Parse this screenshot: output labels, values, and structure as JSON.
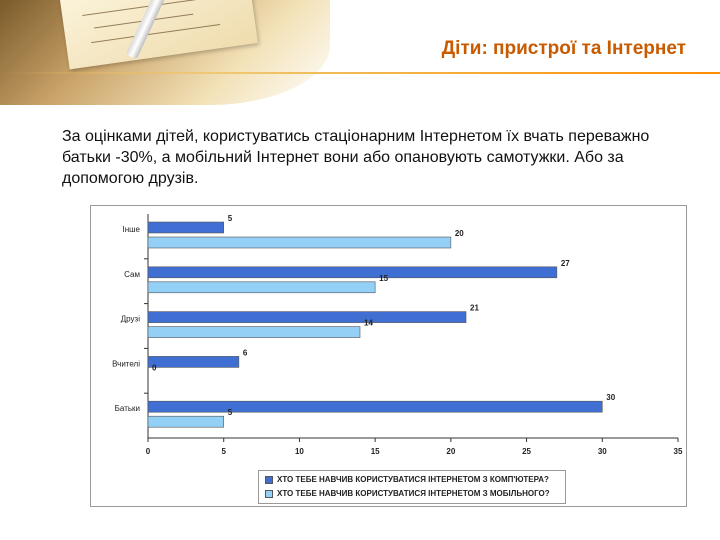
{
  "slide": {
    "title": "Діти: пристрої та Інтернет",
    "body": "За оцінками дітей, користуватись стаціонарним Інтернетом їх вчать переважно батьки -30%, а мобільний Інтернет вони або опановують самотужки. Або за допомогою друзів."
  },
  "colors": {
    "title": "#c85a00",
    "series1": "#3f6fd2",
    "series2": "#94cff5"
  },
  "chart_data": {
    "type": "bar",
    "orientation": "horizontal",
    "categories": [
      "Інше",
      "Сам",
      "Друзі",
      "Вчителі",
      "Батьки"
    ],
    "series": [
      {
        "name": "ХТО ТЕБЕ НАВЧИВ КОРИСТУВАТИСЯ ІНТЕРНЕТОМ З КОМП'ЮТЕРА?",
        "values": [
          5,
          27,
          21,
          6,
          30
        ]
      },
      {
        "name": "ХТО ТЕБЕ НАВЧИВ КОРИСТУВАТИСЯ ІНТЕРНЕТОМ З МОБІЛЬНОГО?",
        "values": [
          20,
          15,
          14,
          0,
          5
        ]
      }
    ],
    "xlim": [
      0,
      35
    ],
    "xticks": [
      "0",
      "5",
      "10",
      "15",
      "20",
      "25",
      "30",
      "35"
    ],
    "grid": false,
    "legend_position": "bottom"
  }
}
